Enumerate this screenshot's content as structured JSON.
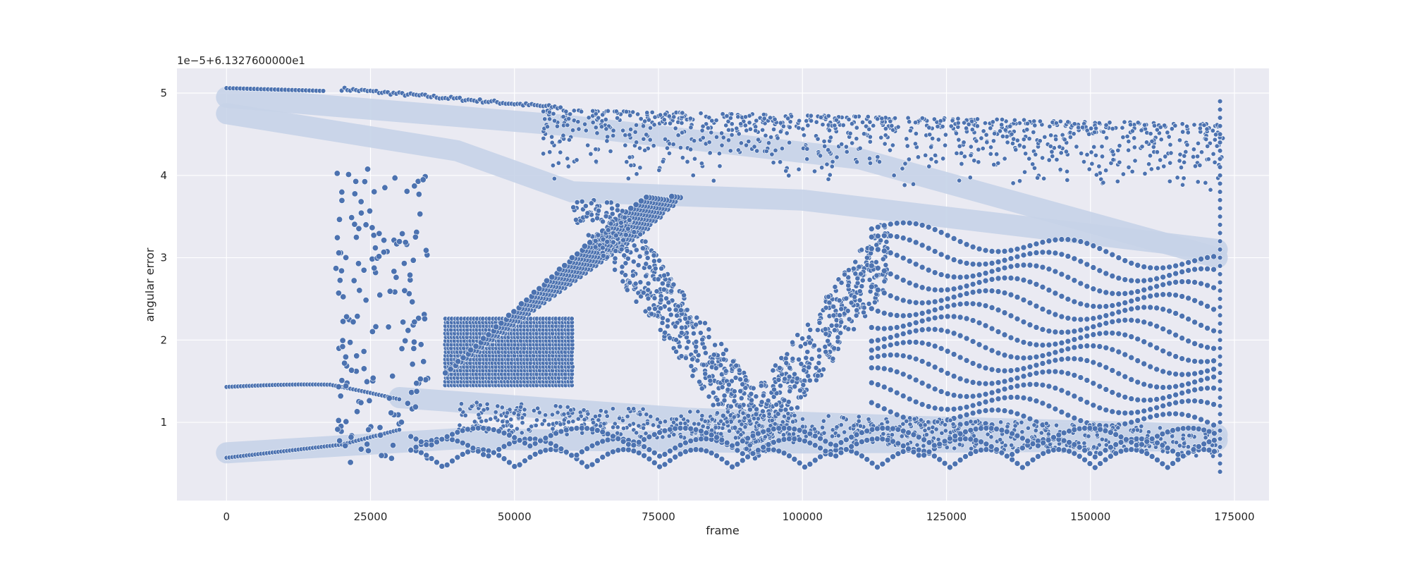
{
  "chart_data": {
    "type": "scatter",
    "title": "",
    "xlabel": "frame",
    "ylabel": "angular error",
    "offset_text": "1e−5+6.1327600000e1",
    "xlim": [
      -8600,
      181000
    ],
    "ylim": [
      0.05,
      5.3
    ],
    "x_ticks": [
      0,
      25000,
      50000,
      75000,
      100000,
      125000,
      150000,
      175000
    ],
    "x_tick_labels": [
      "0",
      "25000",
      "50000",
      "75000",
      "100000",
      "125000",
      "150000",
      "175000"
    ],
    "y_ticks": [
      1,
      2,
      3,
      4,
      5
    ],
    "y_tick_labels": [
      "1",
      "2",
      "3",
      "4",
      "5"
    ],
    "grid": true,
    "legend": "none",
    "marker_color": "#4c72b0",
    "marker_edge_color": "#ffffff",
    "background_color": "#eaeaf2",
    "x_range_of_points": [
      0,
      173000
    ],
    "y_range_of_points": [
      0.3,
      5.07
    ],
    "series": [
      {
        "points": [
          [
            0,
            5.06
          ],
          [
            5000,
            5.05
          ],
          [
            10000,
            5.04
          ],
          [
            15000,
            5.03
          ],
          [
            20000,
            5.05
          ],
          [
            25000,
            5.04
          ],
          [
            30000,
            5.0
          ],
          [
            40000,
            4.9
          ],
          [
            50000,
            4.85
          ],
          [
            60000,
            4.75
          ],
          [
            75000,
            4.8
          ],
          [
            90000,
            4.85
          ],
          [
            110000,
            4.85
          ],
          [
            125000,
            4.85
          ],
          [
            150000,
            4.8
          ],
          [
            172000,
            4.9
          ],
          [
            0,
            4.7
          ],
          [
            10000,
            4.6
          ],
          [
            20000,
            4.5
          ],
          [
            30000,
            4.4
          ],
          [
            45000,
            4.2
          ],
          [
            60000,
            4.0
          ],
          [
            0,
            1.43
          ],
          [
            10000,
            1.46
          ],
          [
            18000,
            1.44
          ],
          [
            25000,
            1.35
          ],
          [
            32000,
            1.25
          ],
          [
            0,
            0.57
          ],
          [
            10000,
            0.6
          ],
          [
            20000,
            0.7
          ],
          [
            28000,
            0.85
          ],
          [
            35000,
            0.7
          ],
          [
            20000,
            3.9
          ],
          [
            22000,
            3.3
          ],
          [
            23000,
            2.5
          ],
          [
            21000,
            1.05
          ],
          [
            24000,
            1.9
          ],
          [
            26000,
            3.6
          ],
          [
            28000,
            3.9
          ],
          [
            30000,
            3.2
          ],
          [
            40000,
            2.2
          ],
          [
            45000,
            2.0
          ],
          [
            50000,
            1.8
          ],
          [
            55000,
            1.6
          ],
          [
            60000,
            1.4
          ],
          [
            40000,
            1.2
          ],
          [
            50000,
            1.15
          ],
          [
            60000,
            1.1
          ],
          [
            70000,
            1.05
          ],
          [
            80000,
            1.0
          ],
          [
            100000,
            0.95
          ],
          [
            120000,
            0.9
          ],
          [
            140000,
            0.85
          ],
          [
            172000,
            0.75
          ],
          [
            40000,
            0.45
          ],
          [
            50000,
            0.5
          ],
          [
            60000,
            0.5
          ],
          [
            70000,
            0.45
          ],
          [
            80000,
            0.5
          ],
          [
            95000,
            0.4
          ],
          [
            110000,
            0.38
          ],
          [
            130000,
            0.33
          ],
          [
            150000,
            0.33
          ],
          [
            172000,
            0.4
          ],
          [
            60000,
            3.5
          ],
          [
            70000,
            3.3
          ],
          [
            80000,
            3.0
          ],
          [
            85000,
            2.5
          ],
          [
            90000,
            2.0
          ],
          [
            95000,
            1.5
          ],
          [
            100000,
            2.0
          ],
          [
            105000,
            2.6
          ],
          [
            110000,
            3.2
          ],
          [
            115000,
            3.4
          ],
          [
            125000,
            3.3
          ],
          [
            140000,
            3.0
          ],
          [
            160000,
            2.7
          ],
          [
            172000,
            2.5
          ],
          [
            120000,
            4.2
          ],
          [
            135000,
            4.25
          ],
          [
            150000,
            4.3
          ],
          [
            165000,
            4.2
          ],
          [
            172000,
            4.1
          ],
          [
            45000,
            3.7
          ],
          [
            55000,
            3.6
          ],
          [
            65000,
            3.4
          ],
          [
            75000,
            2.8
          ],
          [
            78000,
            2.3
          ],
          [
            120000,
            2.5
          ],
          [
            130000,
            2.2
          ],
          [
            140000,
            1.9
          ],
          [
            150000,
            1.6
          ],
          [
            160000,
            1.4
          ],
          [
            172000,
            1.2
          ]
        ]
      }
    ]
  }
}
